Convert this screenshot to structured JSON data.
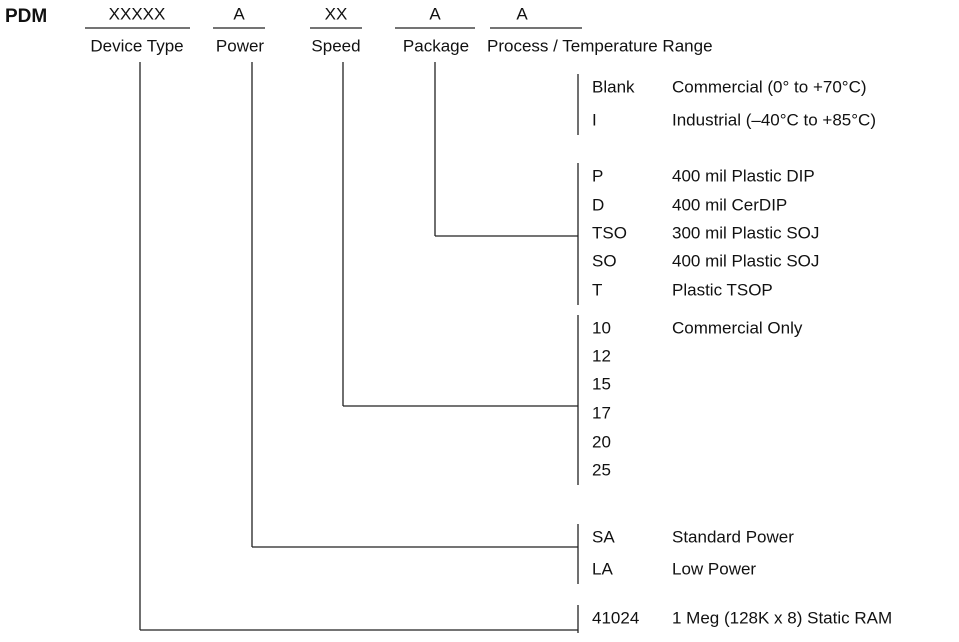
{
  "header": {
    "prefix": "PDM",
    "fields": [
      {
        "code": "XXXXX",
        "label": "Device Type"
      },
      {
        "code": "A",
        "label": "Power"
      },
      {
        "code": "XX",
        "label": "Speed"
      },
      {
        "code": "A",
        "label": "Package"
      },
      {
        "code": "A",
        "label": "Process / Temperature Range"
      }
    ]
  },
  "groups": [
    {
      "options": [
        {
          "code": "Blank",
          "description": "Commercial (0° to +70°C)"
        },
        {
          "code": "I",
          "description": "Industrial (–40°C to +85°C)"
        }
      ]
    },
    {
      "options": [
        {
          "code": "P",
          "description": "400 mil Plastic DIP"
        },
        {
          "code": "D",
          "description": "400 mil CerDIP"
        },
        {
          "code": "TSO",
          "description": "300 mil Plastic SOJ"
        },
        {
          "code": "SO",
          "description": "400 mil Plastic SOJ"
        },
        {
          "code": "T",
          "description": "Plastic TSOP"
        }
      ]
    },
    {
      "options": [
        {
          "code": "10",
          "description": "Commercial Only"
        },
        {
          "code": "12"
        },
        {
          "code": "15"
        },
        {
          "code": "17"
        },
        {
          "code": "20"
        },
        {
          "code": "25"
        }
      ]
    },
    {
      "options": [
        {
          "code": "SA",
          "description": "Standard Power"
        },
        {
          "code": "LA",
          "description": "Low Power"
        }
      ]
    },
    {
      "options": [
        {
          "code": "41024",
          "description": "1 Meg (128K x 8) Static RAM"
        }
      ]
    }
  ]
}
